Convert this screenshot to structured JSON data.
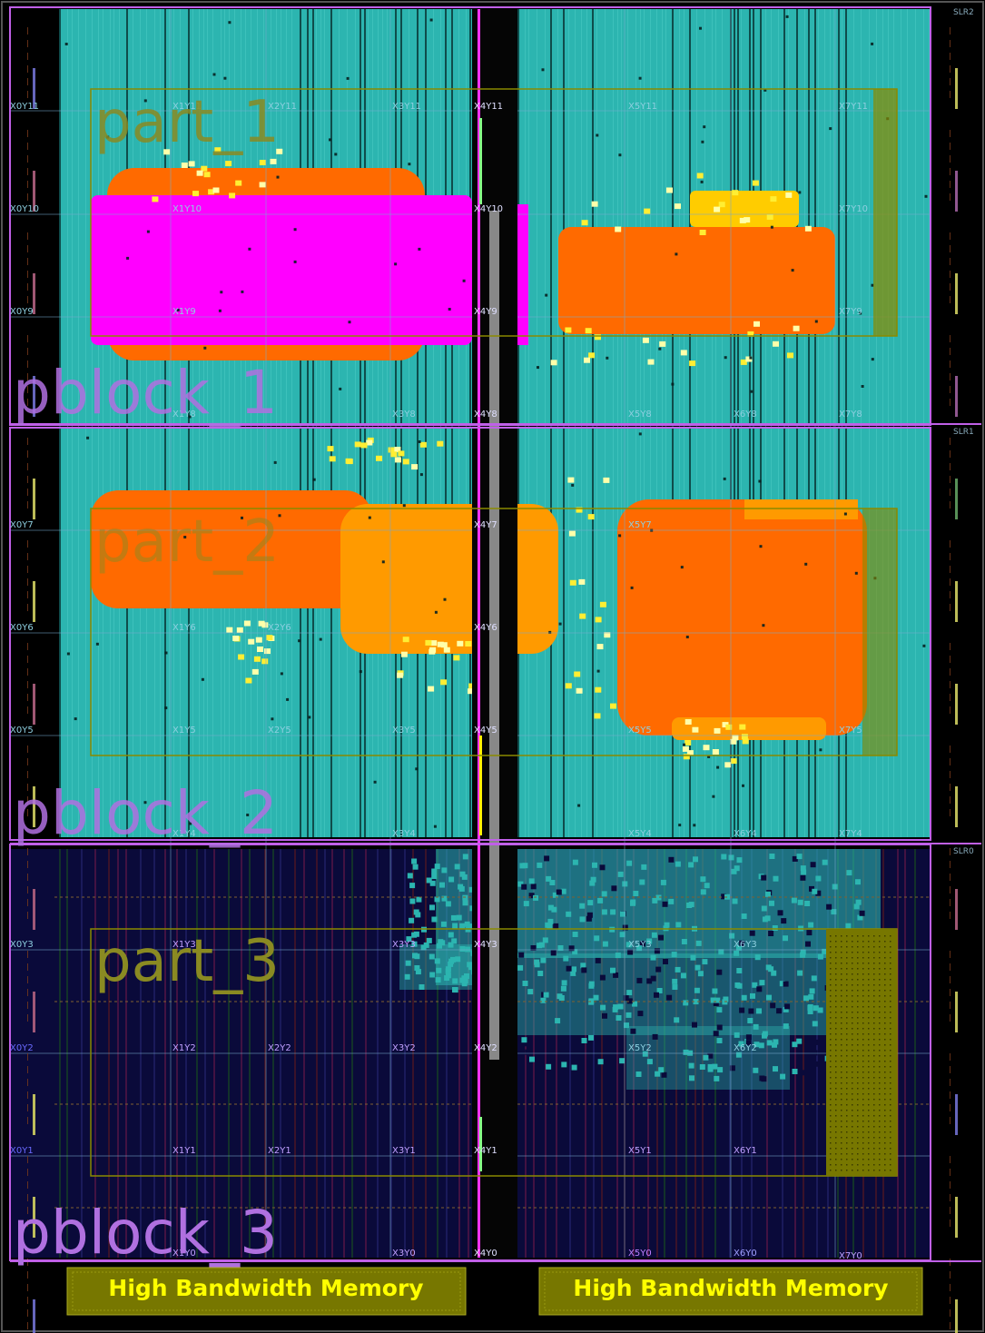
{
  "slr_labels": [
    "SLR2",
    "SLR1",
    "SLR0"
  ],
  "pblocks": [
    {
      "label": "pblock_1",
      "region": "SLR2"
    },
    {
      "label": "pblock_2",
      "region": "SLR1"
    },
    {
      "label": "pblock_3",
      "region": "SLR0"
    }
  ],
  "parts": [
    {
      "label": "part_1"
    },
    {
      "label": "part_2"
    },
    {
      "label": "part_3"
    }
  ],
  "clock_regions": {
    "columns": [
      "X0",
      "X1",
      "X2",
      "X3",
      "X4",
      "X5",
      "X6",
      "X7"
    ],
    "rows": [
      "Y11",
      "Y10",
      "Y9",
      "Y8",
      "Y7",
      "Y6",
      "Y5",
      "Y4",
      "Y3",
      "Y2",
      "Y1",
      "Y0"
    ]
  },
  "clock_region_labels": {
    "X0Y11": "X0Y11",
    "X0Y10": "X0Y10",
    "X0Y9": "X0Y9",
    "X0Y7": "X0Y7",
    "X0Y6": "X0Y6",
    "X0Y5": "X0Y5",
    "X0Y3": "X0Y3",
    "X0Y2": "X0Y2",
    "X0Y1": "X0Y1",
    "X1Y11": "X1Y11",
    "X1Y10": "X1Y10",
    "X1Y9": "X1Y9",
    "X1Y8": "X1Y8",
    "X1Y6": "X1Y6",
    "X1Y5": "X1Y5",
    "X1Y4": "X1Y4",
    "X1Y3": "X1Y3",
    "X1Y2": "X1Y2",
    "X1Y1": "X1Y1",
    "X1Y0": "X1Y0",
    "X2Y11": "X2Y11",
    "X2Y6": "X2Y6",
    "X2Y5": "X2Y5",
    "X2Y2": "X2Y2",
    "X2Y1": "X2Y1",
    "X3Y11": "X3Y11",
    "X3Y8": "X3Y8",
    "X3Y5": "X3Y5",
    "X3Y4": "X3Y4",
    "X3Y3": "X3Y3",
    "X3Y2": "X3Y2",
    "X3Y1": "X3Y1",
    "X3Y0": "X3Y0",
    "X4Y11": "X4Y11",
    "X4Y10": "X4Y10",
    "X4Y9": "X4Y9",
    "X4Y8": "X4Y8",
    "X4Y7": "X4Y7",
    "X4Y6": "X4Y6",
    "X4Y5": "X4Y5",
    "X4Y3": "X4Y3",
    "X4Y2": "X4Y2",
    "X4Y1": "X4Y1",
    "X4Y0": "X4Y0",
    "X5Y11": "X5Y11",
    "X5Y8": "X5Y8",
    "X5Y7": "X5Y7",
    "X5Y5": "X5Y5",
    "X5Y4": "X5Y4",
    "X5Y3": "X5Y3",
    "X5Y2": "X5Y2",
    "X5Y1": "X5Y1",
    "X5Y0": "X5Y0",
    "X6Y8": "X6Y8",
    "X6Y4": "X6Y4",
    "X6Y3": "X6Y3",
    "X6Y2": "X6Y2",
    "X6Y1": "X6Y1",
    "X6Y0": "X6Y0",
    "X7Y11": "X7Y11",
    "X7Y10": "X7Y10",
    "X7Y9": "X7Y9",
    "X7Y8": "X7Y8",
    "X7Y5": "X7Y5",
    "X7Y4": "X7Y4",
    "X7Y0": "X7Y0"
  },
  "hbm_blocks": [
    {
      "label": "High Bandwidth Memory"
    },
    {
      "label": "High Bandwidth Memory"
    }
  ],
  "colors": {
    "logic": "#2cb5b0",
    "fabric_bg": "#0a0a3a",
    "pblock_border": "#c060e8",
    "pblock_text": "#b070e0",
    "part_border": "#8a8a00",
    "part_text": "#8a8a22",
    "orange": "#ff6a00",
    "amber": "#ff9a00",
    "magenta": "#ff00ff",
    "yellow": "#ffee33",
    "hbm_fill": "#777700",
    "hbm_text": "#ffff00"
  }
}
